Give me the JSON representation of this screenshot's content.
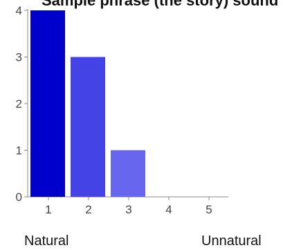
{
  "chart_data": {
    "type": "bar",
    "title": "Sample phrase (the story) sound",
    "categories": [
      "1",
      "2",
      "3",
      "4",
      "5"
    ],
    "values": [
      4,
      3,
      1,
      0,
      0
    ],
    "ylim": [
      0,
      4
    ],
    "y_ticks": [
      "0",
      "1",
      "2",
      "3",
      "4"
    ],
    "xlabel": "",
    "ylabel": "",
    "grid": false,
    "colors": [
      "#0000cc",
      "#4444e6",
      "#6666ee",
      "#8080f0",
      "#9999f2"
    ]
  },
  "scale_labels": {
    "left": "Natural",
    "right": "Unnatural"
  }
}
